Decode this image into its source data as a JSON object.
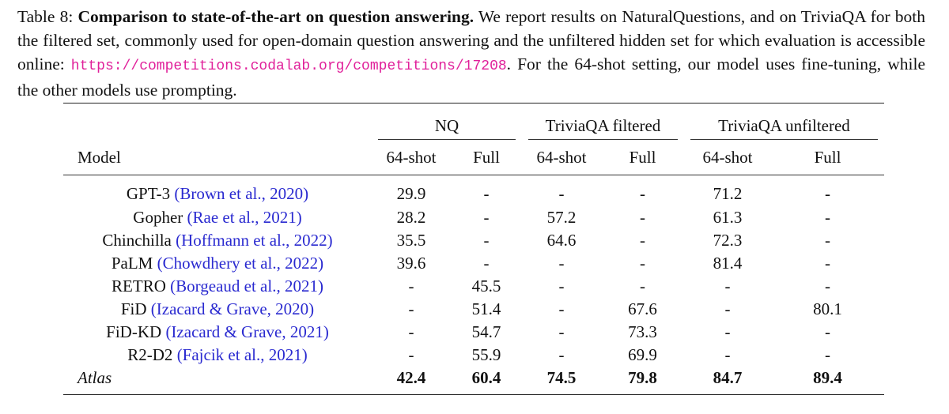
{
  "caption": {
    "label": "Table 8:",
    "title": "Comparison to state-of-the-art on question answering.",
    "text": "We report results on NaturalQuestions, and on TriviaQA for both the filtered set, commonly used for open-domain question answering and the unfiltered hidden set for which evaluation is accessible online:",
    "url": "https://competitions.codalab.org/competitions/17208",
    "text_end": ". For the 64-shot setting, our model uses fine-tuning, while the other models use prompting."
  },
  "table": {
    "groups": [
      "NQ",
      "TriviaQA filtered",
      "TriviaQA unfiltered"
    ],
    "columns": [
      "Model",
      "64-shot",
      "Full",
      "64-shot",
      "Full",
      "64-shot",
      "Full"
    ],
    "rows": [
      {
        "model": "GPT-3",
        "citation": "(Brown et al., 2020)",
        "values": [
          29.9,
          "-",
          "-",
          "-",
          71.2,
          "-"
        ]
      },
      {
        "model": "Gopher",
        "citation": "(Rae et al., 2021)",
        "values": [
          28.2,
          "-",
          57.2,
          "-",
          61.3,
          "-"
        ]
      },
      {
        "model": "Chinchilla",
        "citation": "(Hoffmann et al., 2022)",
        "values": [
          35.5,
          "-",
          64.6,
          "-",
          72.3,
          "-"
        ]
      },
      {
        "model": "PaLM",
        "citation": "(Chowdhery et al., 2022)",
        "values": [
          39.6,
          "-",
          "-",
          "-",
          81.4,
          "-"
        ]
      },
      {
        "model": "RETRO",
        "citation": "(Borgeaud et al., 2021)",
        "values": [
          "-",
          45.5,
          "-",
          "-",
          "-",
          "-"
        ]
      },
      {
        "model": "FiD",
        "citation": "(Izacard & Grave, 2020)",
        "values": [
          "-",
          51.4,
          "-",
          67.6,
          "-",
          80.1
        ]
      },
      {
        "model": "FiD-KD",
        "citation": "(Izacard & Grave, 2021)",
        "values": [
          "-",
          54.7,
          "-",
          73.3,
          "-",
          "-"
        ]
      },
      {
        "model": "R2-D2",
        "citation": "(Fajcik et al., 2021)",
        "values": [
          "-",
          55.9,
          "-",
          69.9,
          "-",
          "-"
        ]
      },
      {
        "model": "Atlas",
        "values": [
          42.4,
          60.4,
          74.5,
          79.8,
          84.7,
          89.4
        ]
      }
    ]
  }
}
